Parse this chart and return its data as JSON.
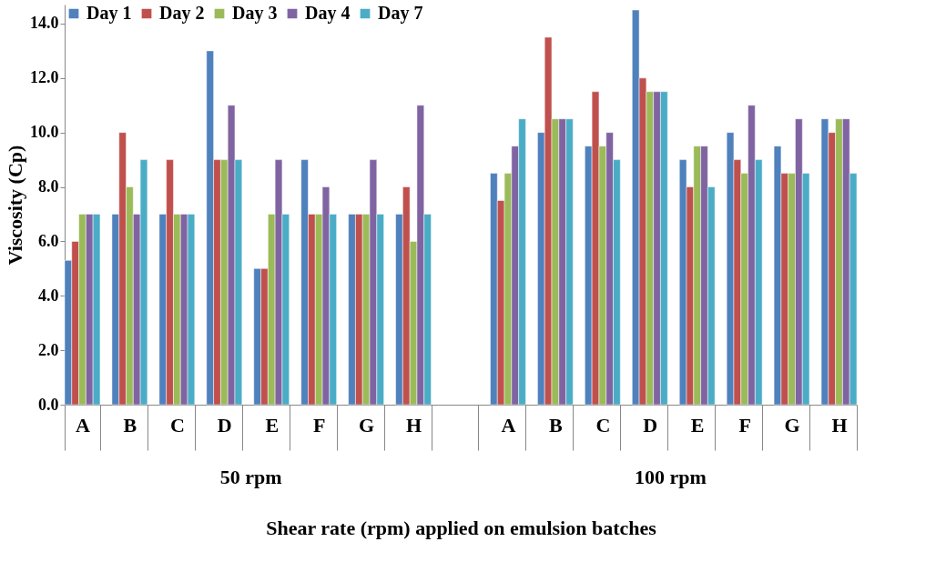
{
  "chart_data": {
    "type": "bar",
    "xlabel": "Shear rate (rpm) applied on emulsion batches",
    "ylabel": "Viscosity (Cp)",
    "categories": [
      "A",
      "B",
      "C",
      "D",
      "E",
      "F",
      "G",
      "H",
      null,
      "A",
      "B",
      "C",
      "D",
      "E",
      "F",
      "G",
      "H"
    ],
    "series": [
      {
        "name": "Day 1",
        "color": "#4f81bd",
        "values": [
          5.3,
          7,
          7,
          13,
          5,
          9,
          7,
          7,
          null,
          8.5,
          10,
          9.5,
          14.5,
          9,
          10,
          9.5,
          10.5
        ]
      },
      {
        "name": "Day 2",
        "color": "#c0504d",
        "values": [
          6,
          10,
          9,
          9,
          5,
          7,
          7,
          8,
          null,
          7.5,
          13.5,
          11.5,
          12,
          8,
          9,
          8.5,
          10
        ]
      },
      {
        "name": "Day 3",
        "color": "#9bbb59",
        "values": [
          7,
          8,
          7,
          9,
          7,
          7,
          7,
          6,
          null,
          8.5,
          10.5,
          9.5,
          11.5,
          9.5,
          8.5,
          8.5,
          10.5
        ]
      },
      {
        "name": "Day 4",
        "color": "#8064a2",
        "values": [
          7,
          7,
          7,
          11,
          9,
          8,
          9,
          11,
          null,
          9.5,
          10.5,
          10,
          11.5,
          9.5,
          11,
          10.5,
          10.5
        ]
      },
      {
        "name": "Day 7",
        "color": "#4bacc6",
        "values": [
          7,
          9,
          7,
          9,
          7,
          7,
          7,
          7,
          null,
          10.5,
          10.5,
          9,
          11.5,
          8,
          9,
          8.5,
          8.5
        ]
      }
    ],
    "ylim": [
      0,
      14.7
    ],
    "yticks": [
      {
        "value": 0,
        "label": "0.0"
      },
      {
        "value": 2,
        "label": "2.0"
      },
      {
        "value": 4,
        "label": "4.0"
      },
      {
        "value": 6,
        "label": "6.0"
      },
      {
        "value": 8,
        "label": "8.0"
      },
      {
        "value": 10,
        "label": "10.0"
      },
      {
        "value": 12,
        "label": "12.0"
      },
      {
        "value": 14,
        "label": "14.0"
      }
    ],
    "annotations": [
      "50 rpm",
      "100 rpm"
    ],
    "grid": false,
    "legend": "top left"
  }
}
